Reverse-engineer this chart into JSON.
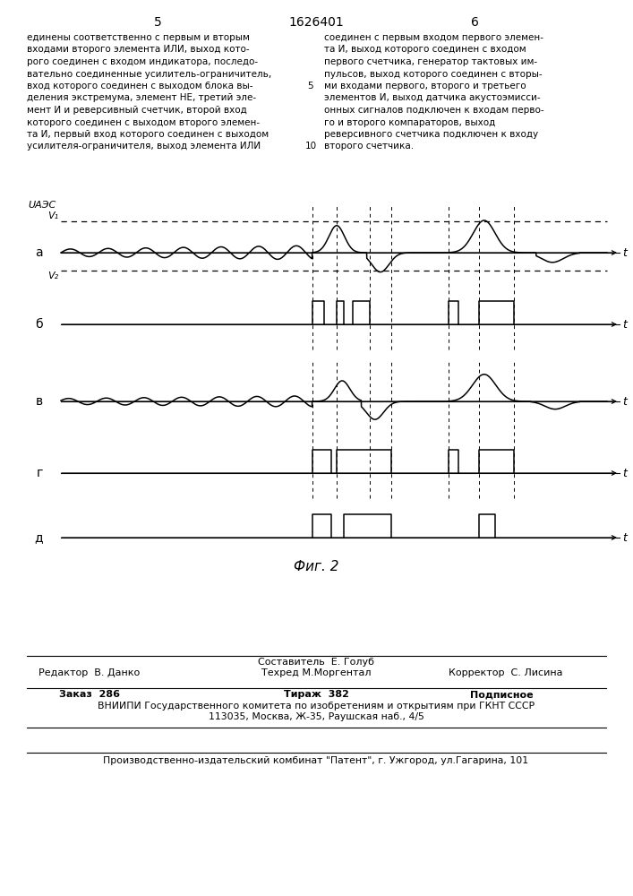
{
  "page_number_left": "5",
  "page_number_center": "1626401",
  "page_number_right": "6",
  "text_left": "единены соответственно с первым и вторым\nвходами второго элемента ИЛИ, выход кото-\nрого соединен с входом индикатора, последо-\nвательно соединенные усилитель-ограничитель,\nвход которого соединен с выходом блока вы-\nделения экстремума, элемент НЕ, третий эле-\nмент И и реверсивный счетчик, второй вход\nкоторого соединен с выходом второго элемен-\nта И, первый вход которого соединен с выходом\nусилителя-ограничителя, выход элемента ИЛИ",
  "line_number_5": "5",
  "line_number_10": "10",
  "text_right": "соединен с первым входом первого элемен-\nта И, выход которого соединен с входом\nпервого счетчика, генератор тактовых им-\nпульсов, выход которого соединен с вторы-\nми входами первого, второго и третьего\nэлементов И, выход датчика акустоэмисси-\nонных сигналов подключен к входам перво-\nго и второго компараторов, выход\nреверсивного счетчика подключен к входу\nвторого счетчика.",
  "fig_label": "Фиг. 2",
  "label_a": "а",
  "label_b": "б",
  "label_v": "в",
  "label_g": "г",
  "label_d": "д",
  "label_uaes": "UАЭC",
  "label_v1": "V₁",
  "label_v2": "V₂",
  "label_t": "t",
  "editor_line": "Редактор  В. Данко",
  "composer_title": "Составитель  Е. Голуб",
  "techred_line": "Техред М.Моргентал",
  "corrector_line": "Корректор  С. Лисина",
  "order_line": "Заказ  286",
  "tirazh_line": "Тираж  382",
  "podpisnoe_line": "Подписное",
  "vniipи_line": "ВНИИПИ Государственного комитета по изобретениям и открытиям при ГКНТ СССР",
  "address_line": "113035, Москва, Ж-35, Раушская наб., 4/5",
  "factory_line": "Производственно-издательский комбинат \"Патент\", г. Ужгород, ул.Гагарина, 101",
  "bg_color": "#ffffff",
  "line_color": "#000000"
}
